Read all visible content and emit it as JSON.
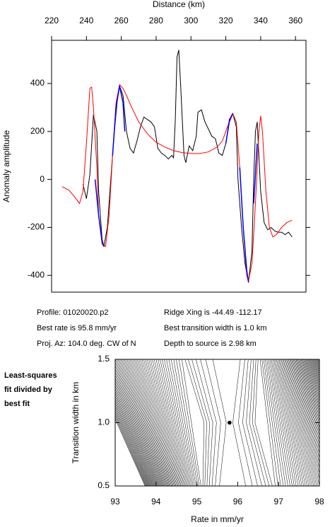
{
  "chart_data": [
    {
      "type": "line",
      "xlabel": "Distance (km)",
      "ylabel": "Anomaly amplitude",
      "xlim": [
        220,
        366
      ],
      "ylim": [
        -470,
        580
      ],
      "xticks": [
        220,
        240,
        260,
        280,
        300,
        320,
        340,
        360
      ],
      "yticks": [
        -400,
        -200,
        0,
        200,
        400
      ],
      "series": [
        {
          "color": "#000000",
          "x": [
            238,
            240,
            242,
            244,
            246,
            247,
            249,
            250,
            252,
            254,
            256,
            258,
            259,
            261,
            263,
            265,
            267,
            269,
            271,
            273,
            277,
            279,
            281,
            283,
            285,
            287,
            289,
            290,
            291,
            292,
            293,
            294,
            296,
            297,
            299,
            301,
            303,
            304,
            306,
            308,
            310,
            312,
            314,
            316,
            318,
            320,
            322,
            324,
            326,
            327,
            329,
            331,
            333,
            335,
            336,
            337,
            338,
            340,
            342,
            344,
            346,
            348,
            350,
            352,
            354,
            356,
            358
          ],
          "values": [
            -20,
            -80,
            20,
            270,
            200,
            -50,
            -250,
            -280,
            -200,
            0,
            200,
            350,
            390,
            350,
            200,
            130,
            110,
            160,
            220,
            260,
            240,
            220,
            130,
            110,
            100,
            85,
            100,
            90,
            250,
            510,
            540,
            400,
            100,
            70,
            140,
            120,
            180,
            280,
            290,
            240,
            210,
            180,
            170,
            110,
            100,
            150,
            250,
            275,
            220,
            0,
            -200,
            -350,
            -430,
            -300,
            0,
            200,
            240,
            -50,
            -180,
            -210,
            -200,
            -215,
            -220,
            -220,
            -230,
            -220,
            -240
          ]
        },
        {
          "color": "#ff0000",
          "x": [
            226,
            230,
            234,
            236,
            238,
            240,
            242,
            243,
            244,
            246,
            247,
            249,
            251,
            253,
            255,
            257,
            259,
            261,
            263,
            266,
            270,
            275,
            280,
            285,
            290,
            295,
            300,
            305,
            310,
            315,
            318,
            321,
            323,
            324,
            326,
            328,
            330,
            332,
            333,
            335,
            337,
            339,
            340,
            341,
            343,
            345,
            347,
            349,
            352,
            355,
            358
          ],
          "values": [
            -30,
            -45,
            -80,
            -100,
            -50,
            150,
            380,
            385,
            300,
            50,
            -150,
            -270,
            -280,
            -150,
            100,
            320,
            395,
            380,
            350,
            300,
            240,
            190,
            155,
            135,
            120,
            112,
            108,
            108,
            115,
            135,
            160,
            220,
            265,
            275,
            240,
            50,
            -200,
            -400,
            -425,
            -350,
            -100,
            200,
            265,
            200,
            -50,
            -200,
            -240,
            -230,
            -200,
            -180,
            -170
          ]
        },
        {
          "color": "#0000ff",
          "x": [
            245,
            247,
            249,
            250,
            null,
            255,
            257,
            259,
            261,
            262,
            null,
            320,
            322,
            324,
            null,
            328,
            330,
            332,
            333,
            null,
            336,
            338
          ],
          "values": [
            0,
            -150,
            -260,
            -280,
            null,
            100,
            300,
            390,
            320,
            200,
            null,
            150,
            240,
            275,
            null,
            50,
            -200,
            -380,
            -425,
            null,
            -100,
            150
          ]
        }
      ],
      "annotations": [
        "Profile: 01020020.p2",
        "Best rate is 95.8 mm/yr",
        "Proj. Az: 104.0 deg. CW of N",
        "Ridge Xing is -44.49 -112.17",
        "Best transition width is 1.0 km",
        "Depth to source is   2.98 km"
      ]
    },
    {
      "type": "contour",
      "title": [
        "Least-squares",
        "fit divided by",
        "best fit"
      ],
      "xlabel": "Rate in mm/yr",
      "ylabel": "Transition width in km",
      "xlim": [
        93,
        98
      ],
      "ylim": [
        0.5,
        1.5
      ],
      "xticks": [
        93,
        94,
        95,
        96,
        97,
        98
      ],
      "yticks": [
        {
          "value": 0.5,
          "label": "0.5"
        },
        {
          "value": 1.0,
          "label": "1.0"
        },
        {
          "value": 1.5,
          "label": "1.5"
        }
      ],
      "best_fit": {
        "x": 95.8,
        "y": 1.0
      }
    }
  ]
}
